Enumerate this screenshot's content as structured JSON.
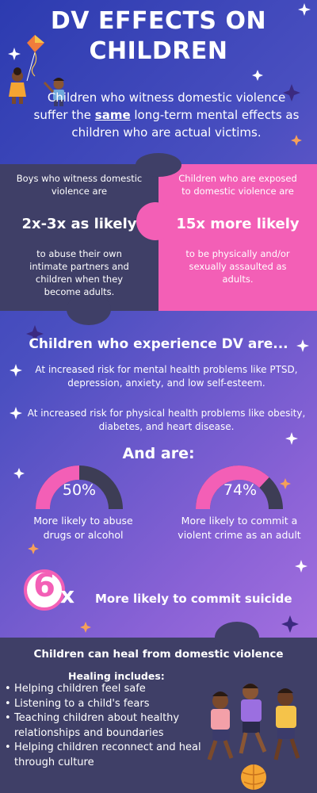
{
  "title": {
    "line1": "DV EFFECTS ON",
    "line2": "CHILDREN"
  },
  "intro": {
    "part1": "Children who witness domestic violence suffer the ",
    "emphasis": "same",
    "part2": " long-term mental effects as children who are actual victims."
  },
  "stats": {
    "left": {
      "pre": "Boys who witness domestic violence are",
      "value": "2x-3x as likely",
      "post": "to abuse their own intimate partners and children when they become adults."
    },
    "right": {
      "pre": "Children who are exposed to domestic violence are",
      "value": "15x more likely",
      "post": "to be physically and/or sexually assaulted as adults."
    }
  },
  "experience": {
    "heading": "Children who experience DV are...",
    "risks": [
      "At increased risk for mental health problems like PTSD, depression, anxiety, and low self-esteem.",
      "At increased risk for physical health problems like obesity, diabetes, and heart disease."
    ]
  },
  "and_are": {
    "heading": "And are:",
    "gauges": [
      {
        "value_label": "50%",
        "fraction": 0.5,
        "caption": "More likely to abuse drugs or alcohol"
      },
      {
        "value_label": "74%",
        "fraction": 0.74,
        "caption": "More likely to commit a violent crime as an adult"
      }
    ]
  },
  "suicide": {
    "number": "6",
    "multiplier": "x",
    "caption": "More likely to commit suicide"
  },
  "healing": {
    "title": "Children can heal from domestic violence",
    "subtitle": "Healing includes:",
    "items": [
      "Helping children feel safe",
      "Listening to a child's fears",
      "Teaching children about healthy relationships and boundaries",
      "Helping children reconnect and heal through culture"
    ]
  },
  "colors": {
    "pink": "#f35fb6",
    "dark_panel": "#3f3f67",
    "gauge_track": "#3d3d55"
  },
  "icons": [
    "sparkle-icon",
    "kids-kite-illustration",
    "kids-playing-illustration"
  ]
}
